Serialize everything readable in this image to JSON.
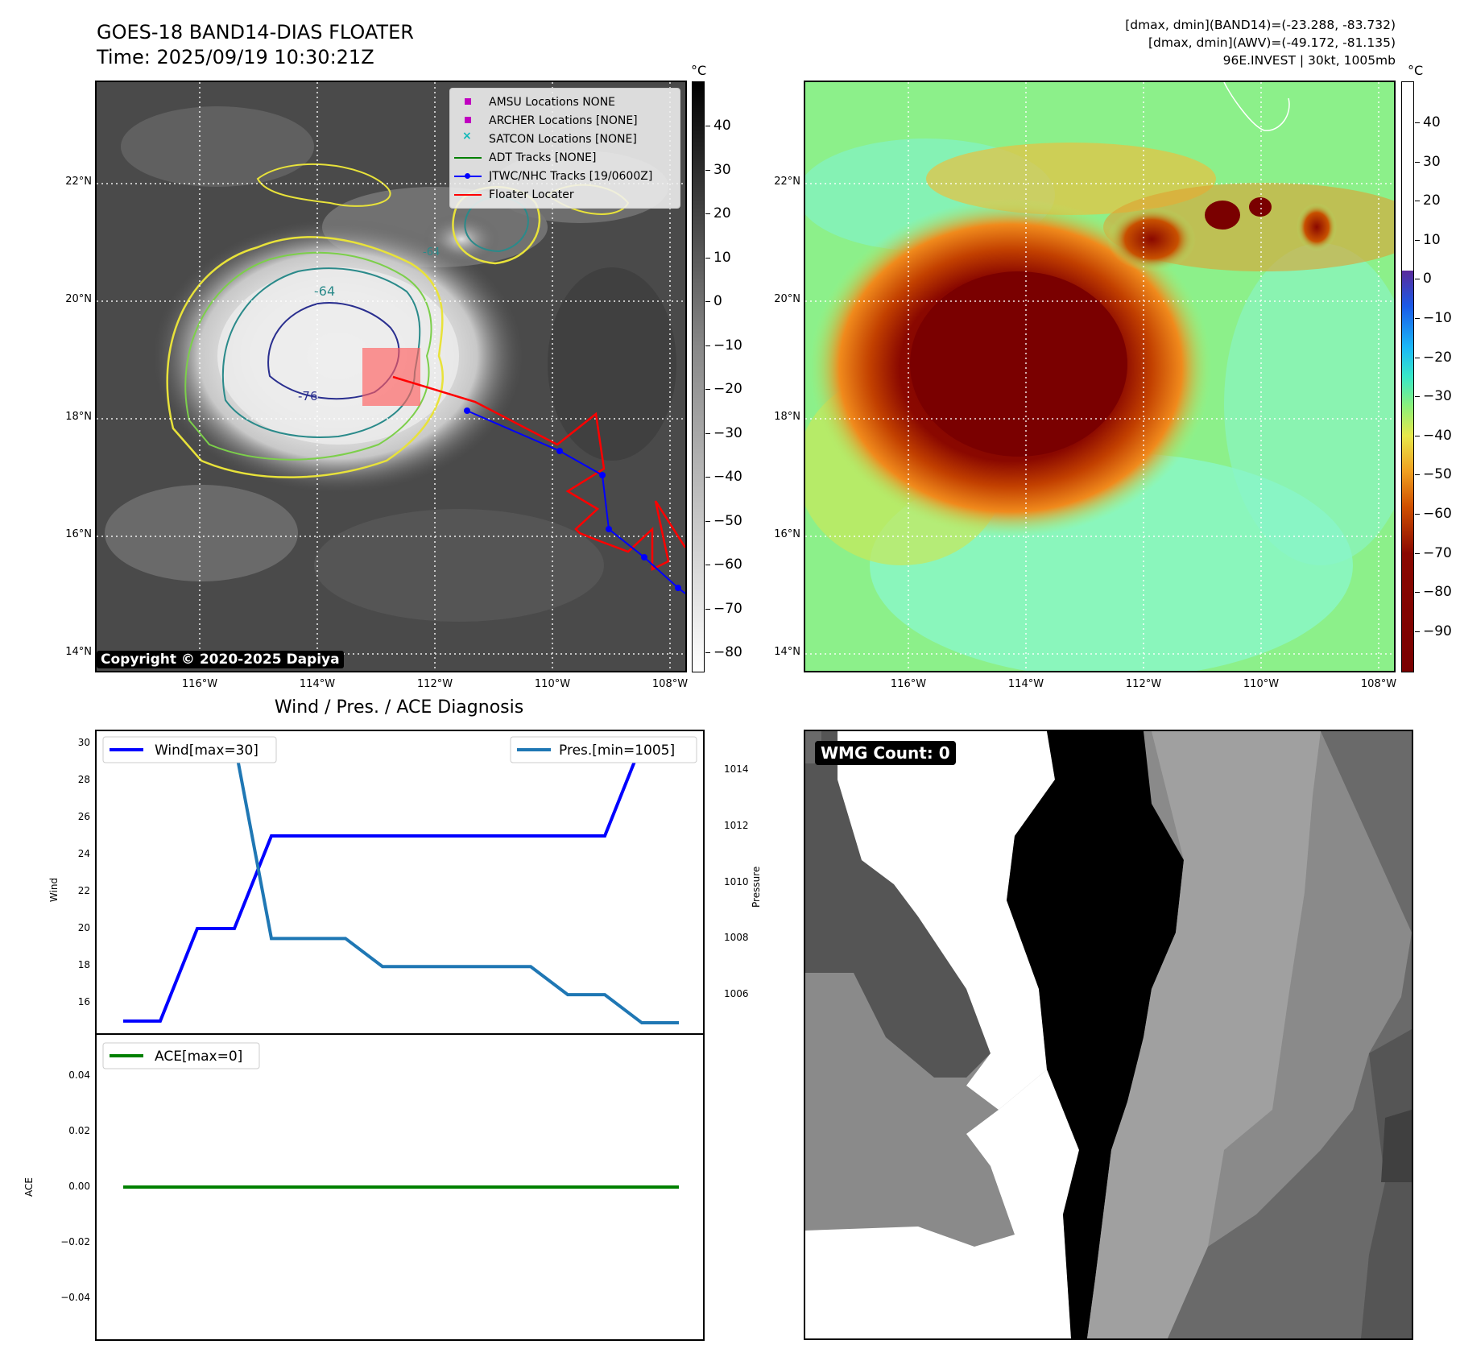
{
  "header": {
    "title_line1": "GOES-18 BAND14-DIAS FLOATER",
    "title_line2": "Time: 2025/09/19 10:30:21Z",
    "right_line1": "[dmax, dmin](BAND14)=(-23.288, -83.732)",
    "right_line2": "[dmax, dmin](AWV)=(-49.172, -81.135)",
    "right_line3": "96E.INVEST | 30kt, 1005mb"
  },
  "ir_panel": {
    "lat_labels": [
      "22°N",
      "20°N",
      "18°N",
      "16°N",
      "14°N"
    ],
    "lon_labels": [
      "116°W",
      "114°W",
      "112°W",
      "110°W",
      "108°W"
    ],
    "copyright": "Copyright © 2020-2025 Dapiya",
    "contour_labels": [
      "-64",
      "-64",
      "-76"
    ],
    "colorbar_unit": "°C",
    "colorbar_ticks": [
      "40",
      "30",
      "20",
      "10",
      "0",
      "−10",
      "−20",
      "−30",
      "−40",
      "−50",
      "−60",
      "−70",
      "−80"
    ],
    "legend": [
      {
        "label": "AMSU Locations NONE",
        "color": "#c000c0",
        "marker": "square"
      },
      {
        "label": "ARCHER Locations [NONE]",
        "color": "#c000c0",
        "marker": "square"
      },
      {
        "label": "SATCON Locations [NONE]",
        "color": "#10b8b8",
        "marker": "x"
      },
      {
        "label": "ADT Tracks [NONE]",
        "color": "#008000",
        "marker": "line"
      },
      {
        "label": "JTWC/NHC Tracks [19/0600Z]",
        "color": "#0000ff",
        "marker": "line-dot"
      },
      {
        "label": "Floater Locater",
        "color": "#ff0000",
        "marker": "line"
      }
    ]
  },
  "awv_panel": {
    "lat_labels": [
      "22°N",
      "20°N",
      "18°N",
      "16°N",
      "14°N"
    ],
    "lon_labels": [
      "116°W",
      "114°W",
      "112°W",
      "110°W",
      "108°W"
    ],
    "colorbar_unit": "°C",
    "colorbar_ticks": [
      "40",
      "30",
      "20",
      "10",
      "0",
      "−10",
      "−20",
      "−30",
      "−40",
      "−50",
      "−60",
      "−70",
      "−80",
      "−90"
    ]
  },
  "diag": {
    "title": "Wind / Pres. / ACE Diagnosis",
    "wind_label": "Wind",
    "pressure_label": "Pressure",
    "ace_label": "ACE",
    "wind_legend": "Wind[max=30]",
    "pres_legend": "Pres.[min=1005]",
    "ace_legend": "ACE[max=0]",
    "wind_color": "#0000ff",
    "pres_color": "#1f77b4",
    "ace_color": "#008000"
  },
  "wmg_panel": {
    "label": "WMG Count: 0"
  },
  "chart_data": [
    {
      "type": "line",
      "series": [
        {
          "name": "Wind[max=30]",
          "axis": "left",
          "values": [
            15,
            15,
            20,
            20,
            25,
            25,
            25,
            25,
            25,
            25,
            25,
            25,
            25,
            25,
            30,
            30
          ]
        },
        {
          "name": "Pres.[min=1005]",
          "axis": "right",
          "values": [
            1015,
            1015,
            1015,
            1015,
            1008,
            1008,
            1008,
            1007,
            1007,
            1007,
            1007,
            1007,
            1006,
            1006,
            1005,
            1005
          ]
        }
      ],
      "x": [
        0,
        1,
        2,
        3,
        4,
        5,
        6,
        7,
        8,
        9,
        10,
        11,
        12,
        13,
        14,
        15
      ],
      "xlabel": "",
      "ylabel": "Wind",
      "y2label": "Pressure",
      "ylim": [
        14.3,
        30.7
      ],
      "y2lim": [
        1004.6,
        1015.4
      ],
      "yticks": [
        16,
        18,
        20,
        22,
        24,
        26,
        28,
        30
      ],
      "y2ticks": [
        1006,
        1008,
        1010,
        1012,
        1014
      ]
    },
    {
      "type": "line",
      "series": [
        {
          "name": "ACE[max=0]",
          "values": [
            0,
            0,
            0,
            0,
            0,
            0,
            0,
            0,
            0,
            0,
            0,
            0,
            0,
            0,
            0,
            0
          ]
        }
      ],
      "x": [
        0,
        1,
        2,
        3,
        4,
        5,
        6,
        7,
        8,
        9,
        10,
        11,
        12,
        13,
        14,
        15
      ],
      "xlabel": "",
      "ylabel": "ACE",
      "ylim": [
        -0.055,
        0.055
      ],
      "yticks": [
        -0.04,
        -0.02,
        0.0,
        0.02,
        0.04
      ],
      "ytick_labels": [
        "−0.04",
        "−0.02",
        "0.00",
        "0.02",
        "0.04"
      ]
    }
  ]
}
